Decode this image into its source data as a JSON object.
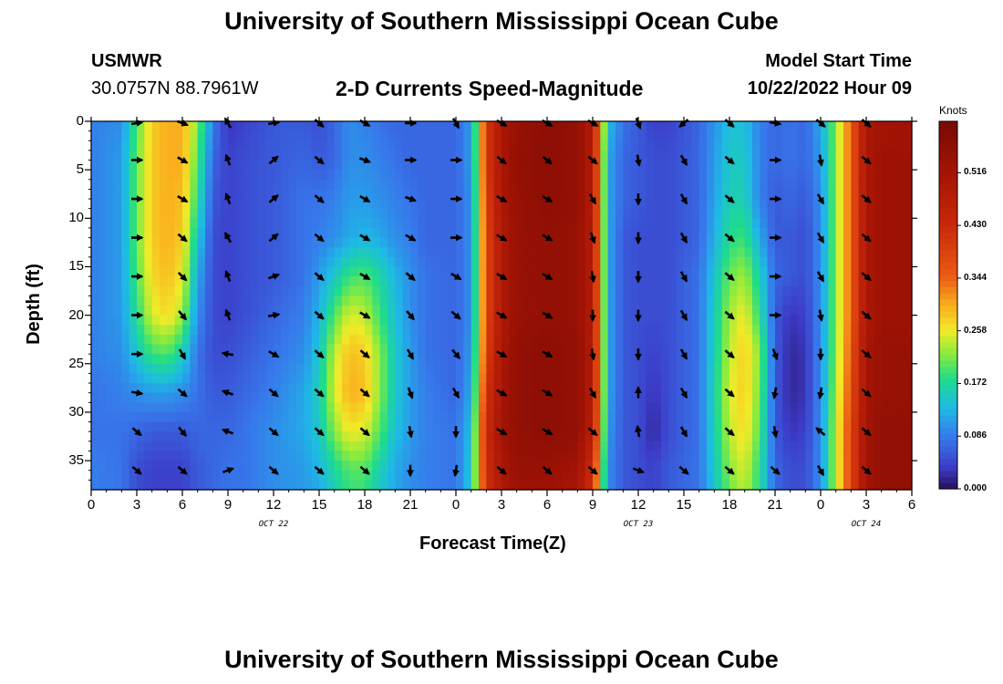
{
  "page": {
    "title": "University of Southern Mississippi Ocean Cube",
    "title_bottom": "University of Southern Mississippi Ocean Cube",
    "station": "USMWR",
    "coords": "30.0757N  88.7961W",
    "subtitle": "2-D Currents Speed-Magnitude",
    "model_label": "Model Start Time",
    "model_time": "10/22/2022 Hour 09"
  },
  "chart_data": {
    "type": "heatmap",
    "title": "2-D Currents Speed-Magnitude",
    "xlabel": "Forecast Time(Z)",
    "ylabel": "Depth (ft)",
    "x_ticks": [
      "0",
      "3",
      "6",
      "9",
      "12",
      "15",
      "18",
      "21",
      "0",
      "3",
      "6",
      "9",
      "12",
      "15",
      "18",
      "21",
      "0",
      "3",
      "6"
    ],
    "x_range_hours": [
      0,
      54
    ],
    "date_labels": [
      {
        "hour": 12,
        "text": "OCT 22"
      },
      {
        "hour": 36,
        "text": "OCT 23"
      },
      {
        "hour": 51,
        "text": "OCT 24"
      }
    ],
    "y_ticks": [
      0,
      5,
      10,
      15,
      20,
      25,
      30,
      35
    ],
    "ylim": [
      0,
      38
    ],
    "colorbar": {
      "label": "Knots",
      "ticks": [
        "0.000",
        "0.086",
        "0.172",
        "0.258",
        "0.344",
        "0.430",
        "0.516"
      ],
      "range": [
        0,
        0.6
      ]
    },
    "speed_knots": {
      "time_hours": [
        0,
        2,
        3,
        4,
        5,
        6,
        7,
        8,
        9,
        10,
        12,
        14,
        15,
        16,
        17,
        18,
        19,
        20,
        21,
        22,
        24,
        25,
        26,
        27,
        28,
        30,
        32,
        33,
        34,
        35,
        36,
        37,
        38,
        40,
        42,
        43,
        44,
        45,
        46,
        47,
        48,
        49,
        50,
        51,
        52,
        54
      ],
      "depth_ft": [
        0,
        4,
        8,
        12,
        16,
        20,
        24,
        28,
        32,
        36,
        38
      ],
      "rows": [
        [
          0.09,
          0.1,
          0.2,
          0.28,
          0.3,
          0.3,
          0.22,
          0.09,
          0.03,
          0.04,
          0.06,
          0.06,
          0.05,
          0.07,
          0.1,
          0.09,
          0.08,
          0.07,
          0.07,
          0.07,
          0.07,
          0.11,
          0.4,
          0.5,
          0.54,
          0.56,
          0.55,
          0.48,
          0.14,
          0.08,
          0.06,
          0.04,
          0.04,
          0.07,
          0.14,
          0.14,
          0.09,
          0.07,
          0.08,
          0.07,
          0.12,
          0.22,
          0.35,
          0.5,
          0.52,
          0.52
        ],
        [
          0.09,
          0.11,
          0.21,
          0.28,
          0.3,
          0.3,
          0.2,
          0.07,
          0.04,
          0.05,
          0.06,
          0.07,
          0.06,
          0.07,
          0.1,
          0.1,
          0.09,
          0.08,
          0.07,
          0.07,
          0.07,
          0.11,
          0.4,
          0.5,
          0.55,
          0.56,
          0.55,
          0.48,
          0.12,
          0.07,
          0.06,
          0.05,
          0.05,
          0.07,
          0.15,
          0.15,
          0.09,
          0.07,
          0.08,
          0.07,
          0.11,
          0.22,
          0.35,
          0.5,
          0.53,
          0.53
        ],
        [
          0.09,
          0.11,
          0.21,
          0.28,
          0.3,
          0.29,
          0.18,
          0.06,
          0.04,
          0.05,
          0.06,
          0.08,
          0.08,
          0.09,
          0.11,
          0.11,
          0.1,
          0.09,
          0.08,
          0.07,
          0.07,
          0.1,
          0.39,
          0.5,
          0.54,
          0.56,
          0.55,
          0.48,
          0.12,
          0.07,
          0.06,
          0.05,
          0.05,
          0.07,
          0.16,
          0.16,
          0.09,
          0.06,
          0.07,
          0.06,
          0.1,
          0.22,
          0.35,
          0.5,
          0.53,
          0.53
        ],
        [
          0.09,
          0.11,
          0.21,
          0.28,
          0.3,
          0.28,
          0.15,
          0.05,
          0.04,
          0.05,
          0.06,
          0.08,
          0.09,
          0.1,
          0.12,
          0.13,
          0.12,
          0.1,
          0.09,
          0.07,
          0.07,
          0.1,
          0.38,
          0.49,
          0.54,
          0.55,
          0.54,
          0.48,
          0.12,
          0.06,
          0.05,
          0.05,
          0.05,
          0.07,
          0.18,
          0.19,
          0.12,
          0.06,
          0.06,
          0.05,
          0.1,
          0.22,
          0.35,
          0.5,
          0.53,
          0.53
        ],
        [
          0.09,
          0.11,
          0.2,
          0.27,
          0.29,
          0.26,
          0.12,
          0.05,
          0.04,
          0.05,
          0.06,
          0.08,
          0.11,
          0.15,
          0.19,
          0.2,
          0.17,
          0.13,
          0.1,
          0.08,
          0.07,
          0.1,
          0.38,
          0.49,
          0.54,
          0.55,
          0.54,
          0.48,
          0.12,
          0.06,
          0.05,
          0.05,
          0.05,
          0.08,
          0.21,
          0.23,
          0.16,
          0.07,
          0.06,
          0.05,
          0.1,
          0.22,
          0.35,
          0.5,
          0.53,
          0.53
        ],
        [
          0.09,
          0.11,
          0.18,
          0.25,
          0.27,
          0.23,
          0.1,
          0.05,
          0.04,
          0.05,
          0.07,
          0.09,
          0.13,
          0.2,
          0.25,
          0.24,
          0.19,
          0.14,
          0.1,
          0.08,
          0.07,
          0.1,
          0.38,
          0.49,
          0.54,
          0.55,
          0.54,
          0.48,
          0.12,
          0.06,
          0.05,
          0.05,
          0.05,
          0.08,
          0.23,
          0.26,
          0.18,
          0.06,
          0.03,
          0.04,
          0.1,
          0.22,
          0.35,
          0.5,
          0.53,
          0.53
        ],
        [
          0.09,
          0.1,
          0.15,
          0.19,
          0.2,
          0.16,
          0.08,
          0.05,
          0.05,
          0.06,
          0.08,
          0.1,
          0.15,
          0.24,
          0.29,
          0.28,
          0.22,
          0.15,
          0.11,
          0.08,
          0.07,
          0.11,
          0.39,
          0.5,
          0.55,
          0.56,
          0.55,
          0.48,
          0.12,
          0.06,
          0.05,
          0.04,
          0.05,
          0.08,
          0.24,
          0.28,
          0.22,
          0.06,
          0.02,
          0.03,
          0.1,
          0.22,
          0.36,
          0.51,
          0.54,
          0.54
        ],
        [
          0.08,
          0.09,
          0.1,
          0.11,
          0.11,
          0.1,
          0.08,
          0.06,
          0.06,
          0.07,
          0.09,
          0.12,
          0.16,
          0.25,
          0.3,
          0.29,
          0.22,
          0.15,
          0.11,
          0.09,
          0.07,
          0.12,
          0.41,
          0.51,
          0.55,
          0.56,
          0.55,
          0.48,
          0.12,
          0.06,
          0.05,
          0.03,
          0.05,
          0.08,
          0.25,
          0.28,
          0.21,
          0.06,
          0.02,
          0.03,
          0.1,
          0.23,
          0.37,
          0.51,
          0.54,
          0.54
        ],
        [
          0.08,
          0.08,
          0.07,
          0.06,
          0.06,
          0.06,
          0.07,
          0.07,
          0.07,
          0.08,
          0.1,
          0.12,
          0.15,
          0.22,
          0.26,
          0.25,
          0.2,
          0.14,
          0.11,
          0.09,
          0.08,
          0.14,
          0.43,
          0.52,
          0.55,
          0.56,
          0.55,
          0.47,
          0.11,
          0.06,
          0.05,
          0.02,
          0.05,
          0.08,
          0.24,
          0.27,
          0.2,
          0.06,
          0.03,
          0.04,
          0.1,
          0.24,
          0.38,
          0.52,
          0.55,
          0.55
        ],
        [
          0.09,
          0.08,
          0.05,
          0.04,
          0.04,
          0.04,
          0.06,
          0.07,
          0.08,
          0.08,
          0.1,
          0.11,
          0.13,
          0.17,
          0.2,
          0.2,
          0.16,
          0.12,
          0.1,
          0.09,
          0.08,
          0.15,
          0.42,
          0.5,
          0.54,
          0.54,
          0.52,
          0.42,
          0.1,
          0.06,
          0.05,
          0.04,
          0.06,
          0.08,
          0.22,
          0.25,
          0.18,
          0.07,
          0.05,
          0.05,
          0.1,
          0.24,
          0.38,
          0.52,
          0.55,
          0.55
        ],
        [
          0.09,
          0.08,
          0.05,
          0.04,
          0.04,
          0.04,
          0.06,
          0.07,
          0.08,
          0.08,
          0.1,
          0.11,
          0.12,
          0.16,
          0.19,
          0.19,
          0.15,
          0.12,
          0.1,
          0.09,
          0.08,
          0.15,
          0.41,
          0.49,
          0.53,
          0.53,
          0.51,
          0.41,
          0.1,
          0.06,
          0.05,
          0.04,
          0.06,
          0.08,
          0.21,
          0.24,
          0.18,
          0.07,
          0.05,
          0.05,
          0.1,
          0.24,
          0.38,
          0.52,
          0.55,
          0.55
        ]
      ]
    },
    "vectors_deg": {
      "time_hours": [
        0,
        3,
        6,
        9,
        12,
        15,
        18,
        21,
        24,
        27,
        30,
        33,
        36,
        39,
        42,
        45,
        48,
        51,
        54
      ],
      "depth_ft": [
        0,
        4,
        8,
        12,
        16,
        20,
        24,
        28,
        32,
        36
      ],
      "columns": [
        null,
        [
          -10,
          0,
          0,
          0,
          0,
          0,
          0,
          10,
          40,
          40
        ],
        [
          20,
          30,
          30,
          40,
          45,
          50,
          60,
          40,
          50,
          40
        ],
        [
          -120,
          -110,
          -110,
          -120,
          -110,
          -110,
          -170,
          -160,
          -160,
          -20
        ],
        [
          -10,
          -40,
          -40,
          -40,
          -20,
          -10,
          30,
          40,
          40,
          40
        ],
        [
          40,
          40,
          40,
          40,
          40,
          40,
          40,
          40,
          40,
          40
        ],
        [
          30,
          20,
          30,
          30,
          30,
          30,
          40,
          40,
          40,
          40
        ],
        [
          0,
          0,
          20,
          30,
          40,
          50,
          60,
          70,
          80,
          90
        ],
        [
          60,
          0,
          0,
          0,
          30,
          40,
          50,
          60,
          90,
          100
        ],
        [
          30,
          40,
          30,
          30,
          30,
          30,
          30,
          30,
          30,
          40
        ],
        [
          30,
          40,
          30,
          30,
          30,
          30,
          30,
          30,
          30,
          40
        ],
        [
          30,
          40,
          60,
          70,
          80,
          90,
          80,
          60,
          40,
          40
        ],
        [
          70,
          80,
          90,
          90,
          90,
          90,
          90,
          -90,
          -100,
          20
        ],
        [
          140,
          60,
          60,
          60,
          60,
          60,
          60,
          60,
          60,
          40
        ],
        [
          40,
          40,
          40,
          40,
          40,
          40,
          40,
          40,
          40,
          40
        ],
        [
          10,
          0,
          0,
          0,
          0,
          0,
          70,
          100,
          80,
          40
        ],
        [
          40,
          80,
          60,
          60,
          60,
          80,
          90,
          100,
          -140,
          60
        ],
        [
          40,
          40,
          40,
          40,
          40,
          40,
          40,
          40,
          40,
          40
        ],
        null
      ]
    }
  }
}
